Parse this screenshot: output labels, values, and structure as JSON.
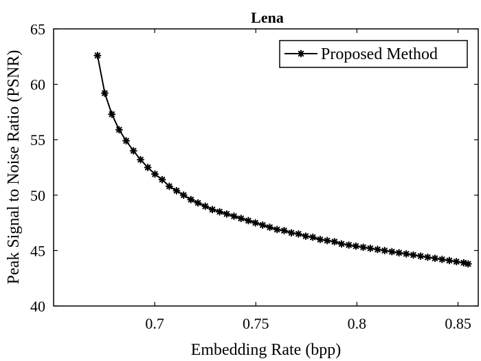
{
  "chart_data": {
    "type": "line",
    "title": "Lena",
    "xlabel": "Embedding Rate (bpp)",
    "ylabel": "Peak Signal to Noise Ratio (PSNR)",
    "xlim": [
      0.65,
      0.86
    ],
    "ylim": [
      40,
      65
    ],
    "xticks": [
      0.7,
      0.75,
      0.8,
      0.85
    ],
    "xtick_labels": [
      "0.7",
      "0.75",
      "0.8",
      "0.85"
    ],
    "yticks": [
      40,
      45,
      50,
      55,
      60,
      65
    ],
    "ytick_labels": [
      "40",
      "45",
      "50",
      "55",
      "60",
      "65"
    ],
    "grid": false,
    "legend_position": "top-right",
    "series": [
      {
        "name": "Proposed Method",
        "color": "#000000",
        "marker": "asterisk",
        "x": [
          0.6717,
          0.6753,
          0.6788,
          0.6824,
          0.6859,
          0.6895,
          0.693,
          0.6966,
          0.7001,
          0.7037,
          0.7072,
          0.7108,
          0.7143,
          0.7179,
          0.7214,
          0.725,
          0.7285,
          0.7321,
          0.7356,
          0.7392,
          0.7427,
          0.7463,
          0.7498,
          0.7534,
          0.7569,
          0.7605,
          0.764,
          0.7676,
          0.7711,
          0.7747,
          0.7782,
          0.7818,
          0.7853,
          0.7889,
          0.7924,
          0.796,
          0.7995,
          0.8031,
          0.8066,
          0.8102,
          0.8137,
          0.8173,
          0.8208,
          0.8244,
          0.8279,
          0.8315,
          0.835,
          0.8386,
          0.8421,
          0.8457,
          0.8492,
          0.8528,
          0.855
        ],
        "y": [
          62.6,
          59.2,
          57.3,
          55.9,
          54.9,
          54.0,
          53.2,
          52.5,
          51.9,
          51.4,
          50.8,
          50.4,
          50.0,
          49.6,
          49.3,
          49.0,
          48.7,
          48.5,
          48.3,
          48.1,
          47.9,
          47.7,
          47.5,
          47.3,
          47.1,
          46.9,
          46.8,
          46.6,
          46.5,
          46.3,
          46.2,
          46.0,
          45.9,
          45.8,
          45.6,
          45.5,
          45.4,
          45.3,
          45.2,
          45.1,
          45.0,
          44.9,
          44.8,
          44.7,
          44.6,
          44.5,
          44.4,
          44.3,
          44.2,
          44.1,
          44.0,
          43.9,
          43.8
        ]
      }
    ]
  }
}
